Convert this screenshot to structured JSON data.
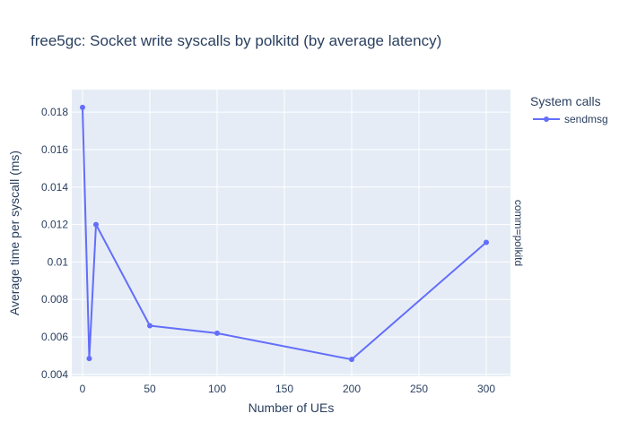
{
  "chart_data": {
    "type": "line",
    "title": "free5gc: Socket write syscalls by polkitd (by average latency)",
    "xlabel": "Number of UEs",
    "ylabel": "Average time per syscall (ms)",
    "xlim": [
      -8,
      318
    ],
    "ylim": [
      0.0039,
      0.0192
    ],
    "x_ticks": [
      0,
      50,
      100,
      150,
      200,
      250,
      300
    ],
    "x_tick_labels": [
      "0",
      "50",
      "100",
      "150",
      "200",
      "250",
      "300"
    ],
    "y_ticks": [
      0.004,
      0.006,
      0.008,
      0.01,
      0.012,
      0.014,
      0.016,
      0.018
    ],
    "y_tick_labels": [
      "0.004",
      "0.006",
      "0.008",
      "0.01",
      "0.012",
      "0.014",
      "0.016",
      "0.018"
    ],
    "grid": true,
    "legend_title": "System calls",
    "legend_position": "top-right",
    "facet_label": "comm=polkitd",
    "colors": {
      "plot_bg": "#e5ecf6",
      "grid": "#ffffff",
      "series": "#636efa"
    },
    "series": [
      {
        "name": "sendmsg",
        "x": [
          0,
          5,
          10,
          50,
          100,
          200,
          300
        ],
        "y": [
          0.01825,
          0.00485,
          0.012,
          0.0066,
          0.0062,
          0.0048,
          0.01105
        ]
      }
    ]
  }
}
